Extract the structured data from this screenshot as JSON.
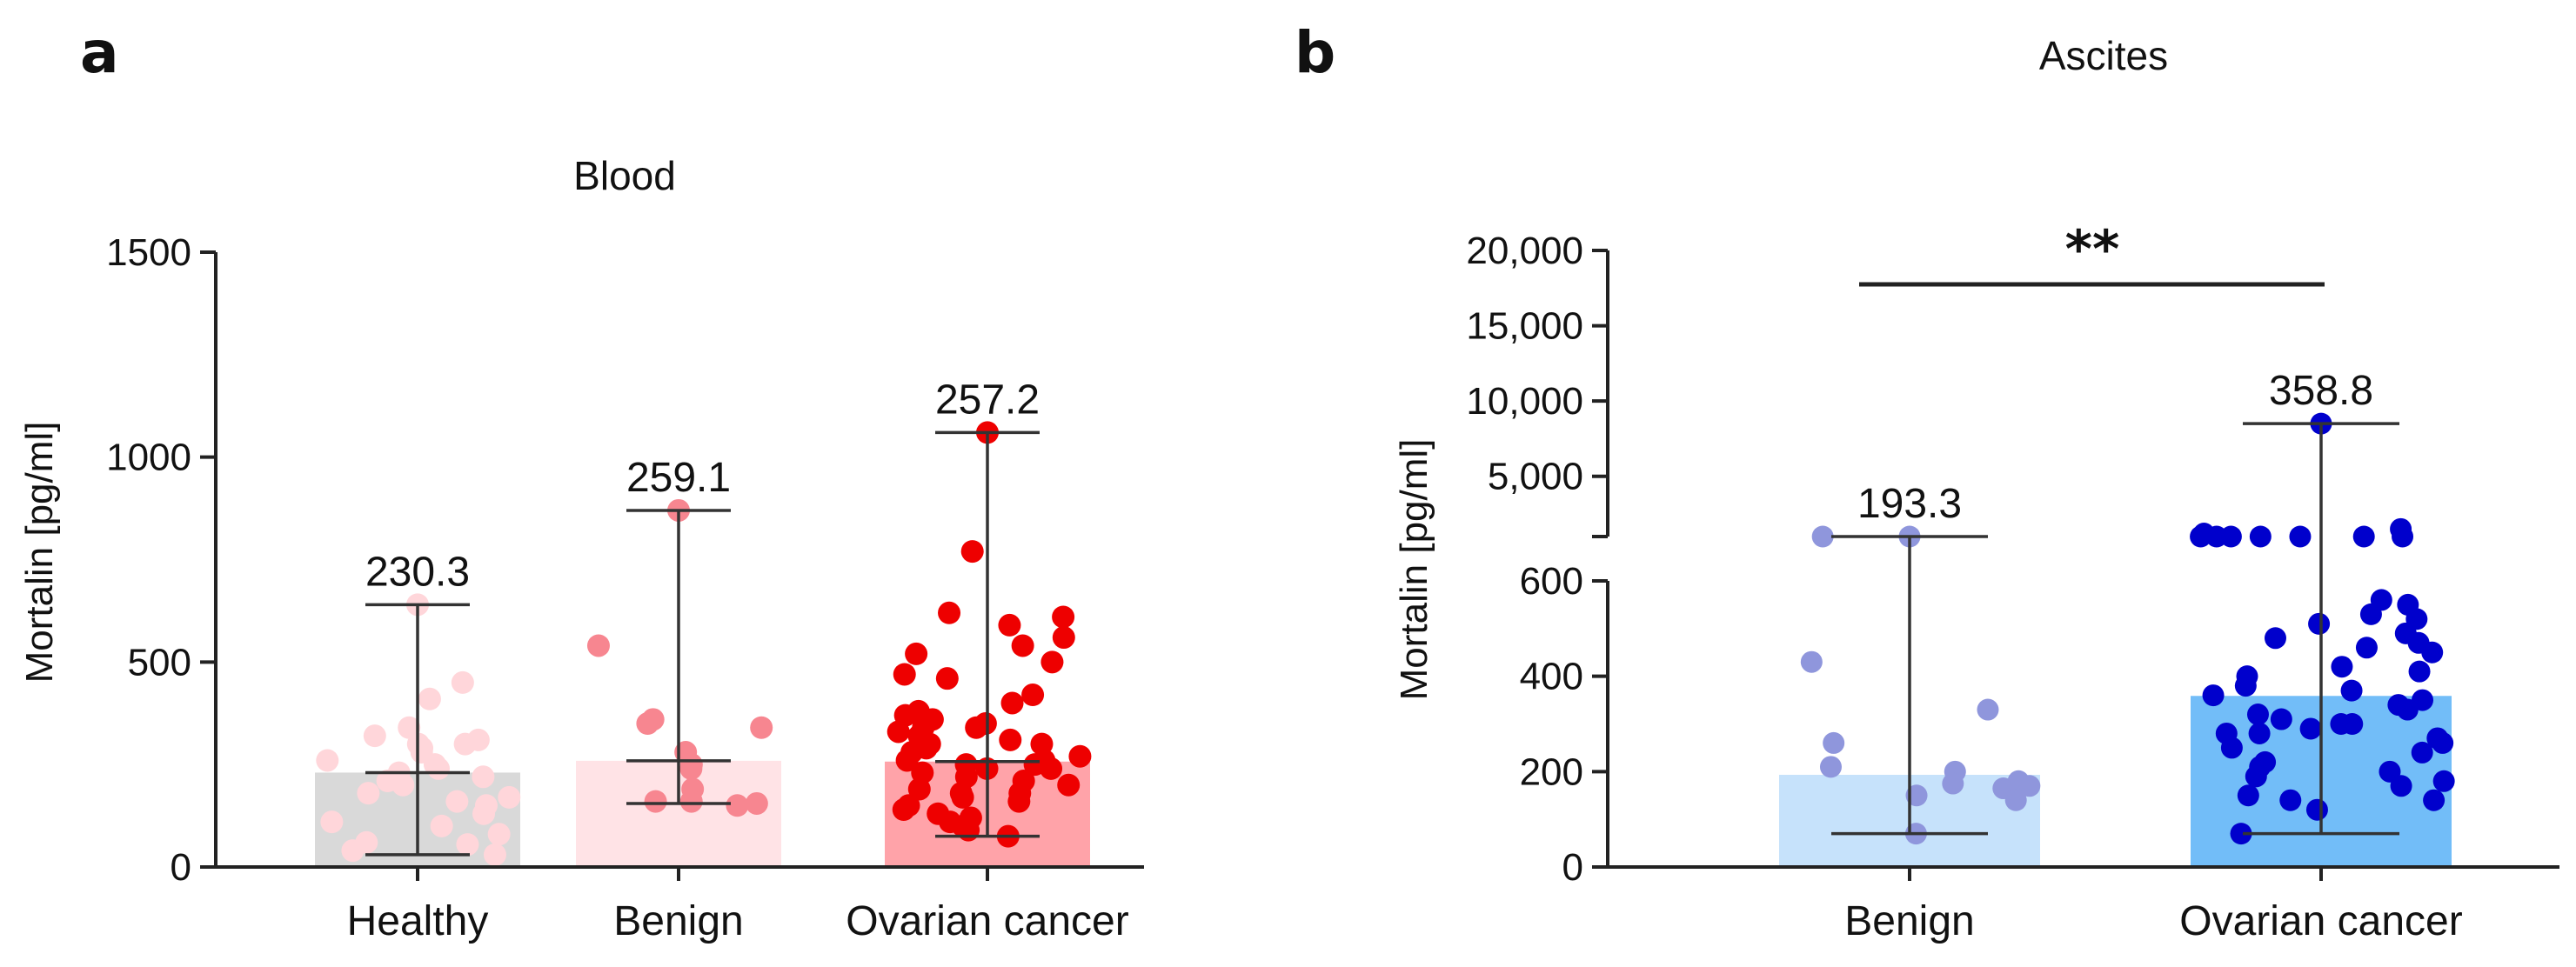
{
  "chart_data": [
    {
      "panel": "a",
      "type": "bar",
      "title": "Blood",
      "ylabel": "Mortalin [pg/ml]",
      "xlabel": "",
      "ylim": [
        0,
        1500
      ],
      "yticks": [
        0,
        500,
        1000,
        1500
      ],
      "categories": [
        "Healthy",
        "Benign",
        "Ovarian cancer"
      ],
      "values": [
        230.3,
        259.1,
        257.2
      ],
      "value_labels": [
        "230.3",
        "259.1",
        "257.2"
      ],
      "ranges": [
        [
          30,
          640
        ],
        [
          155,
          870
        ],
        [
          75,
          1060
        ]
      ],
      "bar_colors": [
        "#d9d9d9",
        "#ffe3e6",
        "#ffa3a9"
      ],
      "point_colors": [
        "#ffd6da",
        "#f78690",
        "#ee0000"
      ],
      "points": [
        [
          640,
          450,
          410,
          340,
          320,
          310,
          300,
          300,
          290,
          280,
          260,
          250,
          240,
          230,
          220,
          210,
          200,
          180,
          170,
          160,
          150,
          130,
          110,
          100,
          80,
          60,
          55,
          40,
          30
        ],
        [
          870,
          540,
          360,
          350,
          340,
          280,
          250,
          240,
          190,
          160,
          160,
          155,
          150
        ],
        [
          1060,
          770,
          620,
          610,
          590,
          560,
          540,
          520,
          500,
          470,
          460,
          420,
          400,
          380,
          370,
          360,
          350,
          340,
          340,
          330,
          320,
          310,
          300,
          300,
          290,
          280,
          270,
          260,
          260,
          250,
          250,
          240,
          240,
          230,
          220,
          210,
          200,
          190,
          180,
          180,
          170,
          160,
          150,
          140,
          130,
          120,
          110,
          100,
          90,
          75
        ]
      ]
    },
    {
      "panel": "b",
      "type": "bar",
      "title": "Ascites",
      "ylabel": "Mortalin [pg/ml]",
      "xlabel": "",
      "y_axis_break": [
        600,
        1000
      ],
      "ylim": [
        0,
        20000
      ],
      "yticks_lower": [
        0,
        200,
        400,
        600
      ],
      "yticks_upper": [
        5000,
        10000,
        15000,
        20000
      ],
      "ytick_labels_lower": [
        "0",
        "200",
        "400",
        "600"
      ],
      "ytick_labels_upper": [
        "5,000",
        "10,000",
        "15,000",
        "20,000"
      ],
      "categories": [
        "Benign",
        "Ovarian cancer"
      ],
      "values": [
        193.3,
        358.8
      ],
      "value_labels": [
        "193.3",
        "358.8"
      ],
      "ranges": [
        [
          70,
          1000
        ],
        [
          70,
          8500
        ]
      ],
      "bar_colors": [
        "#c6e2fb",
        "#72bdf8"
      ],
      "point_colors": [
        "#8f96dc",
        "#0000cc"
      ],
      "significance": "**",
      "points": [
        [
          1000,
          1000,
          430,
          330,
          260,
          210,
          200,
          180,
          175,
          170,
          165,
          150,
          140,
          70
        ],
        [
          8500,
          1500,
          1200,
          1000,
          1000,
          1000,
          1000,
          1000,
          1000,
          1000,
          560,
          550,
          530,
          520,
          510,
          490,
          480,
          470,
          460,
          450,
          420,
          410,
          400,
          380,
          370,
          360,
          350,
          340,
          330,
          320,
          310,
          300,
          300,
          290,
          280,
          280,
          270,
          260,
          250,
          240,
          220,
          210,
          200,
          190,
          180,
          170,
          150,
          140,
          140,
          120,
          70
        ]
      ]
    }
  ]
}
